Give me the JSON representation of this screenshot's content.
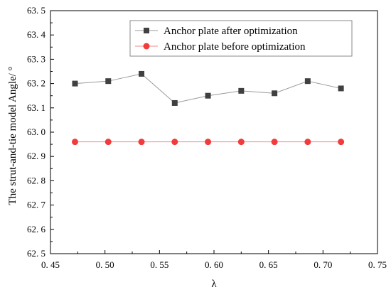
{
  "chart_data": {
    "type": "line",
    "x": [
      0.4725,
      0.503,
      0.5335,
      0.564,
      0.5945,
      0.625,
      0.6555,
      0.686,
      0.7165
    ],
    "series": [
      {
        "name": "Anchor plate after optimization",
        "values": [
          63.2,
          63.21,
          63.24,
          63.12,
          63.15,
          63.17,
          63.16,
          63.21,
          63.18
        ],
        "marker": "square",
        "marker_color": "#404040",
        "line_color": "#9a9a9a"
      },
      {
        "name": "Anchor plate before optimization",
        "values": [
          62.96,
          62.96,
          62.96,
          62.96,
          62.96,
          62.96,
          62.96,
          62.96,
          62.96
        ],
        "marker": "circle",
        "marker_color": "#f03c3c",
        "line_color": "#f08a8a"
      }
    ],
    "xlabel": "λ",
    "ylabel": "The strut-and-tie model Angle/ °",
    "xlim": [
      0.45,
      0.75
    ],
    "ylim": [
      62.5,
      63.5
    ],
    "xticks": [
      0.45,
      0.5,
      0.55,
      0.6,
      0.65,
      0.7,
      0.75
    ],
    "yticks": [
      62.5,
      62.6,
      62.7,
      62.8,
      62.9,
      63.0,
      63.1,
      63.2,
      63.3,
      63.4,
      63.5
    ],
    "xtick_labels": [
      "0. 45",
      "0. 50",
      "0. 55",
      "0. 60",
      "0. 65",
      "0. 70",
      "0. 75"
    ],
    "ytick_labels": [
      "62. 5",
      "62. 6",
      "62. 7",
      "62. 8",
      "62. 9",
      "63. 0",
      "63. 1",
      "63. 2",
      "63. 3",
      "63. 4",
      "63. 5"
    ],
    "grid": false,
    "legend_position": "top-right"
  }
}
